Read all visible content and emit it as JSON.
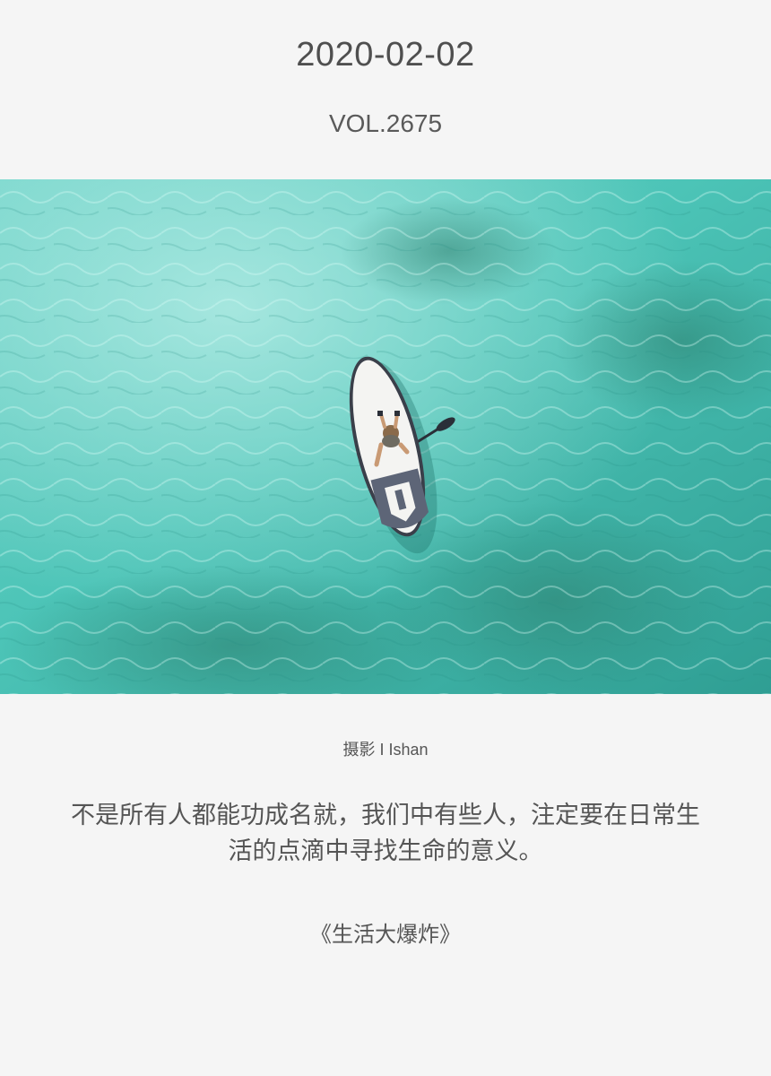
{
  "header": {
    "date": "2020-02-02",
    "volume": "VOL.2675"
  },
  "photo": {
    "subject": "paddleboarder-on-turquoise-sea",
    "colors": {
      "water_light": "#7fd9cf",
      "water_mid": "#3fbcb0",
      "water_dark": "#2a8f86",
      "board": "#f4f4f2",
      "board_trim": "#3a3f4a"
    }
  },
  "caption": {
    "credit": "摄影 I Ishan",
    "quote_lines": [
      "不是所有人都能功成名就，我们中有些人，注定要在日常生",
      "活的点滴中寻找生命的意义。"
    ],
    "source": "《生活大爆炸》"
  }
}
